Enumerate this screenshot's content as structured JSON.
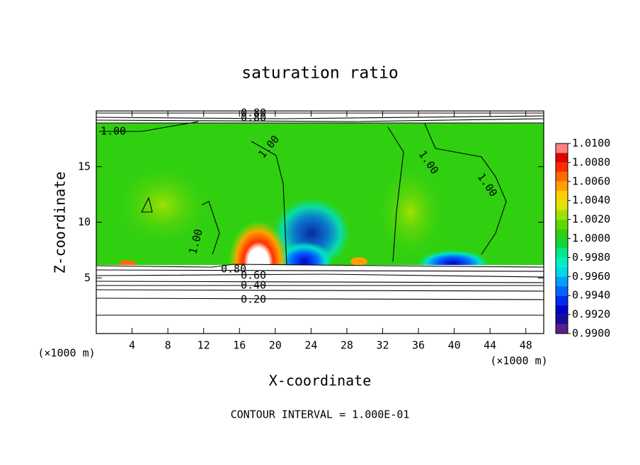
{
  "chart_data": {
    "type": "contour",
    "title": "saturation ratio",
    "xlabel": "X-coordinate",
    "ylabel": "Z-coordinate",
    "x_unit": "(×1000 m)",
    "footer": "CONTOUR INTERVAL = 1.000E-01",
    "xlim": [
      0,
      50
    ],
    "xticks": [
      4,
      8,
      12,
      16,
      20,
      24,
      28,
      32,
      36,
      40,
      44,
      48
    ],
    "ylim": [
      0,
      20
    ],
    "yticks": [
      5,
      10,
      15
    ],
    "zlim": [
      0.99,
      1.01
    ],
    "colorbar_ticks": [
      {
        "value": 0.99,
        "label": "0.9900"
      },
      {
        "value": 0.992,
        "label": "0.9920"
      },
      {
        "value": 0.994,
        "label": "0.9940"
      },
      {
        "value": 0.996,
        "label": "0.9960"
      },
      {
        "value": 0.998,
        "label": "0.9980"
      },
      {
        "value": 1.0,
        "label": "1.0000"
      },
      {
        "value": 1.002,
        "label": "1.0020"
      },
      {
        "value": 1.004,
        "label": "1.0040"
      },
      {
        "value": 1.006,
        "label": "1.0060"
      },
      {
        "value": 1.008,
        "label": "1.0080"
      },
      {
        "value": 1.01,
        "label": "1.0100"
      }
    ],
    "colors": [
      "#5a1e8c",
      "#1a0a9a",
      "#0000c8",
      "#0028f0",
      "#0064ff",
      "#00a0ff",
      "#00d8e8",
      "#00f0c0",
      "#00e890",
      "#10d830",
      "#30d010",
      "#60d800",
      "#a0e000",
      "#e0e400",
      "#ffd000",
      "#ffa000",
      "#ff6a00",
      "#ff2a00",
      "#e00000",
      "#ff8080"
    ],
    "contour_labels": [
      "0.80",
      "0.80",
      "1.00",
      "1.00",
      "1.00",
      "1.00",
      "1.00",
      "0.80",
      "0.60",
      "0.40",
      "0.20"
    ]
  }
}
